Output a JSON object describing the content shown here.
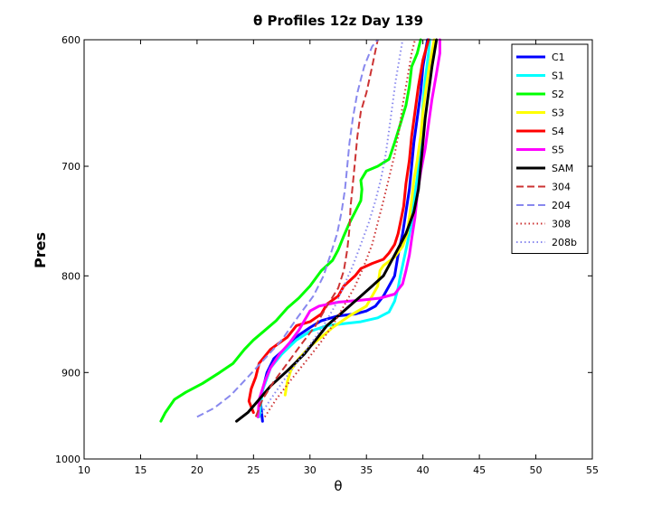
{
  "chart_data": {
    "type": "line",
    "title": "θ Profiles 12z Day 139",
    "xlabel": "θ",
    "ylabel": "Pres",
    "xlim": [
      10,
      55
    ],
    "ylim": [
      600,
      1000
    ],
    "y_reversed": true,
    "y_scale": "log",
    "xticks": [
      "10",
      "15",
      "20",
      "25",
      "30",
      "35",
      "40",
      "45",
      "50",
      "55"
    ],
    "yticks": [
      "600",
      "700",
      "800",
      "900",
      "1000"
    ],
    "grid": false,
    "legend_position": "top-right",
    "series": [
      {
        "name": "C1",
        "color": "#0000ff",
        "style": "solid",
        "points": [
          [
            25.8,
            955
          ],
          [
            25.6,
            930
          ],
          [
            26.2,
            900
          ],
          [
            26.8,
            885
          ],
          [
            28,
            872
          ],
          [
            29,
            860
          ],
          [
            30,
            852
          ],
          [
            31,
            845
          ],
          [
            32.5,
            840
          ],
          [
            34,
            838
          ],
          [
            35,
            835
          ],
          [
            35.8,
            830
          ],
          [
            36.5,
            820
          ],
          [
            37,
            810
          ],
          [
            37.5,
            800
          ],
          [
            37.8,
            780
          ],
          [
            38.2,
            760
          ],
          [
            38.5,
            740
          ],
          [
            38.8,
            720
          ],
          [
            39,
            700
          ],
          [
            39.2,
            680
          ],
          [
            39.5,
            660
          ],
          [
            39.8,
            640
          ],
          [
            40,
            620
          ],
          [
            40.4,
            600
          ]
        ]
      },
      {
        "name": "S1",
        "color": "#00ffff",
        "style": "solid",
        "points": [
          [
            25.5,
            950
          ],
          [
            25.8,
            920
          ],
          [
            26.5,
            895
          ],
          [
            27.5,
            880
          ],
          [
            28.8,
            865
          ],
          [
            30,
            856
          ],
          [
            31.5,
            850
          ],
          [
            33,
            848
          ],
          [
            34.5,
            846
          ],
          [
            36,
            842
          ],
          [
            37,
            836
          ],
          [
            37.5,
            825
          ],
          [
            37.8,
            812
          ],
          [
            38,
            800
          ],
          [
            38.2,
            790
          ],
          [
            38.6,
            770
          ],
          [
            39,
            750
          ],
          [
            39.2,
            730
          ],
          [
            39.5,
            710
          ],
          [
            39.7,
            690
          ],
          [
            39.9,
            670
          ],
          [
            40,
            650
          ],
          [
            40.2,
            630
          ],
          [
            40.5,
            610
          ],
          [
            40.6,
            600
          ]
        ]
      },
      {
        "name": "S2",
        "color": "#00ff00",
        "style": "solid",
        "points": [
          [
            16.8,
            955
          ],
          [
            17.2,
            945
          ],
          [
            18,
            930
          ],
          [
            19,
            922
          ],
          [
            20.5,
            912
          ],
          [
            22,
            900
          ],
          [
            23.2,
            890
          ],
          [
            24.2,
            875
          ],
          [
            25,
            865
          ],
          [
            26,
            855
          ],
          [
            27,
            845
          ],
          [
            28,
            832
          ],
          [
            29,
            822
          ],
          [
            30,
            810
          ],
          [
            31,
            795
          ],
          [
            32,
            785
          ],
          [
            32.5,
            775
          ],
          [
            33,
            762
          ],
          [
            33.5,
            750
          ],
          [
            34,
            740
          ],
          [
            34.5,
            730
          ],
          [
            34.6,
            720
          ],
          [
            34.5,
            712
          ],
          [
            35,
            704
          ],
          [
            36,
            700
          ],
          [
            37,
            694
          ],
          [
            37.5,
            680
          ],
          [
            38,
            665
          ],
          [
            38.5,
            650
          ],
          [
            38.8,
            635
          ],
          [
            39,
            620
          ],
          [
            39.5,
            610
          ],
          [
            39.8,
            600
          ]
        ]
      },
      {
        "name": "S3",
        "color": "#ffff00",
        "style": "solid",
        "points": [
          [
            27.8,
            925
          ],
          [
            28,
            910
          ],
          [
            28.3,
            898
          ],
          [
            29,
            885
          ],
          [
            30,
            872
          ],
          [
            31,
            862
          ],
          [
            32,
            852
          ],
          [
            33.5,
            840
          ],
          [
            35,
            830
          ],
          [
            35.5,
            820
          ],
          [
            36,
            810
          ],
          [
            36.2,
            795
          ],
          [
            36.5,
            790
          ],
          [
            37.5,
            782
          ],
          [
            38.2,
            772
          ],
          [
            38.6,
            760
          ],
          [
            38.8,
            745
          ],
          [
            39,
            730
          ],
          [
            39.2,
            712
          ],
          [
            39.5,
            695
          ],
          [
            39.8,
            675
          ],
          [
            40,
            655
          ],
          [
            40.3,
            635
          ],
          [
            40.6,
            618
          ],
          [
            41,
            600
          ]
        ]
      },
      {
        "name": "S4",
        "color": "#ff0000",
        "style": "solid",
        "points": [
          [
            25,
            945
          ],
          [
            24.6,
            932
          ],
          [
            24.8,
            918
          ],
          [
            25.2,
            905
          ],
          [
            25.5,
            890
          ],
          [
            26.5,
            875
          ],
          [
            28,
            862
          ],
          [
            28.8,
            850
          ],
          [
            30,
            846
          ],
          [
            31,
            838
          ],
          [
            31.5,
            828
          ],
          [
            32.5,
            820
          ],
          [
            33,
            810
          ],
          [
            34,
            800
          ],
          [
            34.5,
            793
          ],
          [
            35.5,
            788
          ],
          [
            36.5,
            784
          ],
          [
            37,
            778
          ],
          [
            37.5,
            770
          ],
          [
            37.8,
            760
          ],
          [
            38,
            750
          ],
          [
            38.3,
            735
          ],
          [
            38.5,
            715
          ],
          [
            38.8,
            695
          ],
          [
            39,
            675
          ],
          [
            39.3,
            655
          ],
          [
            39.6,
            635
          ],
          [
            40,
            615
          ],
          [
            40.5,
            600
          ]
        ]
      },
      {
        "name": "S5",
        "color": "#ff00ff",
        "style": "solid",
        "points": [
          [
            25.4,
            950
          ],
          [
            25.5,
            930
          ],
          [
            26,
            910
          ],
          [
            26.5,
            895
          ],
          [
            27.3,
            880
          ],
          [
            28.2,
            868
          ],
          [
            29,
            855
          ],
          [
            29.5,
            845
          ],
          [
            30,
            835
          ],
          [
            30.8,
            830
          ],
          [
            32.5,
            826
          ],
          [
            34.5,
            824
          ],
          [
            36.2,
            822
          ],
          [
            37.5,
            818
          ],
          [
            38.2,
            808
          ],
          [
            38.5,
            795
          ],
          [
            38.8,
            780
          ],
          [
            39,
            765
          ],
          [
            39.3,
            745
          ],
          [
            39.5,
            725
          ],
          [
            39.8,
            705
          ],
          [
            40.2,
            685
          ],
          [
            40.5,
            665
          ],
          [
            40.8,
            645
          ],
          [
            41.2,
            625
          ],
          [
            41.5,
            610
          ],
          [
            41.5,
            600
          ]
        ]
      },
      {
        "name": "SAM",
        "color": "#000000",
        "style": "solid",
        "points": [
          [
            23.5,
            955
          ],
          [
            24.5,
            945
          ],
          [
            25.5,
            930
          ],
          [
            26.5,
            915
          ],
          [
            28,
            898
          ],
          [
            29.5,
            880
          ],
          [
            30.5,
            865
          ],
          [
            31.5,
            850
          ],
          [
            33,
            835
          ],
          [
            34.5,
            820
          ],
          [
            35.5,
            810
          ],
          [
            36.5,
            800
          ],
          [
            37.5,
            780
          ],
          [
            38.5,
            760
          ],
          [
            39.2,
            740
          ],
          [
            39.6,
            720
          ],
          [
            39.8,
            700
          ],
          [
            40,
            680
          ],
          [
            40.2,
            660
          ],
          [
            40.5,
            640
          ],
          [
            40.8,
            620
          ],
          [
            41.2,
            600
          ]
        ]
      },
      {
        "name": "304",
        "color": "#cc3333",
        "style": "dashed",
        "points": [
          [
            25.2,
            950
          ],
          [
            25.8,
            930
          ],
          [
            26.8,
            910
          ],
          [
            28,
            890
          ],
          [
            29.2,
            870
          ],
          [
            30.5,
            850
          ],
          [
            31.5,
            830
          ],
          [
            32.5,
            812
          ],
          [
            33,
            795
          ],
          [
            33.3,
            775
          ],
          [
            33.5,
            755
          ],
          [
            33.6,
            735
          ],
          [
            33.8,
            715
          ],
          [
            34,
            695
          ],
          [
            34.2,
            675
          ],
          [
            34.5,
            655
          ],
          [
            35,
            640
          ],
          [
            35.5,
            620
          ],
          [
            36,
            600
          ]
        ]
      },
      {
        "name": "204",
        "color": "#8888ee",
        "style": "dashed",
        "points": [
          [
            20,
            950
          ],
          [
            21.5,
            940
          ],
          [
            23,
            925
          ],
          [
            24.5,
            905
          ],
          [
            26,
            885
          ],
          [
            27.5,
            865
          ],
          [
            29,
            840
          ],
          [
            30.3,
            820
          ],
          [
            31.2,
            800
          ],
          [
            31.8,
            780
          ],
          [
            32.4,
            760
          ],
          [
            32.8,
            740
          ],
          [
            33.1,
            720
          ],
          [
            33.3,
            700
          ],
          [
            33.5,
            680
          ],
          [
            33.8,
            660
          ],
          [
            34.2,
            640
          ],
          [
            34.8,
            620
          ],
          [
            35.5,
            605
          ],
          [
            36,
            600
          ]
        ]
      },
      {
        "name": "308",
        "color": "#cc3333",
        "style": "dotted",
        "points": [
          [
            26,
            950
          ],
          [
            27,
            930
          ],
          [
            28.2,
            910
          ],
          [
            29.5,
            890
          ],
          [
            30.8,
            870
          ],
          [
            32,
            850
          ],
          [
            33,
            830
          ],
          [
            34,
            810
          ],
          [
            34.8,
            790
          ],
          [
            35.5,
            770
          ],
          [
            36,
            750
          ],
          [
            36.5,
            730
          ],
          [
            37,
            710
          ],
          [
            37.5,
            690
          ],
          [
            37.9,
            670
          ],
          [
            38.2,
            650
          ],
          [
            38.6,
            630
          ],
          [
            39,
            610
          ],
          [
            39.3,
            600
          ]
        ]
      },
      {
        "name": "208b",
        "color": "#8888ee",
        "style": "dotted",
        "points": [
          [
            25.5,
            950
          ],
          [
            26.5,
            930
          ],
          [
            27.6,
            910
          ],
          [
            28.8,
            890
          ],
          [
            30,
            870
          ],
          [
            31.2,
            850
          ],
          [
            32.2,
            830
          ],
          [
            33,
            810
          ],
          [
            33.8,
            790
          ],
          [
            34.5,
            770
          ],
          [
            35.2,
            750
          ],
          [
            35.8,
            730
          ],
          [
            36.3,
            710
          ],
          [
            36.7,
            690
          ],
          [
            37,
            670
          ],
          [
            37.3,
            650
          ],
          [
            37.6,
            630
          ],
          [
            38,
            610
          ],
          [
            38.2,
            600
          ]
        ]
      }
    ]
  }
}
